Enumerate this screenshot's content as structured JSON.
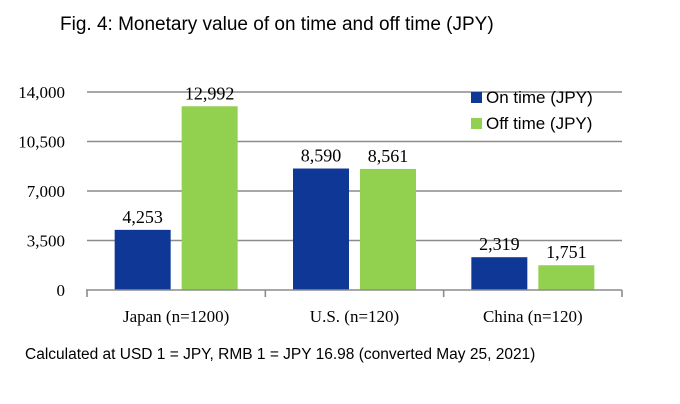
{
  "title": "Fig. 4: Monetary value of on time and off time (JPY)",
  "footnote": "Calculated at USD 1 = JPY, RMB 1 = JPY 16.98 (converted May 25, 2021)",
  "chart_data": {
    "type": "bar",
    "categories": [
      "Japan  (n=1200)",
      "U.S. (n=120)",
      "China (n=120)"
    ],
    "series": [
      {
        "name": "On time (JPY)",
        "color": "#0f3796",
        "values": [
          4253,
          8590,
          2319
        ],
        "labels": [
          "4,253",
          "8,590",
          "2,319"
        ]
      },
      {
        "name": "Off time (JPY)",
        "color": "#92d050",
        "values": [
          12992,
          8561,
          1751
        ],
        "labels": [
          "12,992",
          "8,561",
          "1,751"
        ]
      }
    ],
    "yticks": [
      0,
      3500,
      7000,
      10500,
      14000
    ],
    "ytick_labels": [
      "0",
      "3,500",
      "7,000",
      "10,500",
      "14,000"
    ],
    "ylim": [
      0,
      14000
    ],
    "grid": true,
    "legend": "top-right"
  }
}
